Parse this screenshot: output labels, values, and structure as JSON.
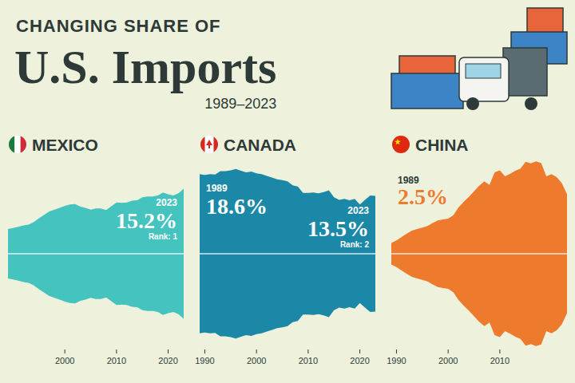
{
  "header": {
    "kicker": "CHANGING SHARE OF",
    "title": "U.S. Imports",
    "subtitle": "1989–2023"
  },
  "chart_data": [
    {
      "type": "streamgraph",
      "title": "MEXICO",
      "color": "#45c3bf",
      "x": [
        1989,
        1990,
        1991,
        1992,
        1993,
        1994,
        1995,
        1996,
        1997,
        1998,
        1999,
        2000,
        2001,
        2002,
        2003,
        2004,
        2005,
        2006,
        2007,
        2008,
        2009,
        2010,
        2011,
        2012,
        2013,
        2014,
        2015,
        2016,
        2017,
        2018,
        2019,
        2020,
        2021,
        2022,
        2023
      ],
      "values": [
        5.8,
        6.0,
        6.3,
        6.6,
        6.8,
        7.4,
        8.3,
        9.1,
        9.9,
        10.3,
        10.7,
        11.2,
        11.5,
        11.6,
        11.0,
        10.7,
        10.3,
        10.6,
        10.6,
        10.2,
        11.1,
        12.0,
        11.9,
        12.0,
        12.4,
        12.5,
        13.2,
        13.4,
        13.4,
        13.6,
        14.3,
        13.9,
        13.6,
        14.1,
        15.2
      ],
      "xlim": [
        1989,
        2023
      ],
      "ylim": [
        0,
        22
      ],
      "xticks": [
        2000,
        2010,
        2020
      ],
      "tick_labels": "x",
      "annotations": [
        {
          "year": 2023,
          "text": "15.2%",
          "rank": "Rank: 1"
        }
      ]
    },
    {
      "type": "streamgraph",
      "title": "CANADA",
      "color": "#1a88a6",
      "x": [
        1989,
        1990,
        1991,
        1992,
        1993,
        1994,
        1995,
        1996,
        1997,
        1998,
        1999,
        2000,
        2001,
        2002,
        2003,
        2004,
        2005,
        2006,
        2007,
        2008,
        2009,
        2010,
        2011,
        2012,
        2013,
        2014,
        2015,
        2016,
        2017,
        2018,
        2019,
        2020,
        2021,
        2022,
        2023
      ],
      "values": [
        18.6,
        18.4,
        18.6,
        18.5,
        19.3,
        19.3,
        19.5,
        19.8,
        19.4,
        19.0,
        19.2,
        18.8,
        18.6,
        18.2,
        17.8,
        17.4,
        17.2,
        16.9,
        16.0,
        15.7,
        14.2,
        14.2,
        14.3,
        14.1,
        14.4,
        14.8,
        13.2,
        12.6,
        12.8,
        12.5,
        12.8,
        11.5,
        12.6,
        13.6,
        13.5
      ],
      "xlim": [
        1989,
        2023
      ],
      "ylim": [
        0,
        22
      ],
      "xticks": [
        1990,
        2000,
        2010,
        2020
      ],
      "tick_labels": "x",
      "annotations": [
        {
          "year": 1989,
          "text": "18.6%"
        },
        {
          "year": 2023,
          "text": "13.5%",
          "rank": "Rank: 2"
        }
      ]
    },
    {
      "type": "streamgraph",
      "title": "CHINA",
      "color": "#ee7a2e",
      "x": [
        1989,
        1990,
        1991,
        1992,
        1993,
        1994,
        1995,
        1996,
        1997,
        1998,
        1999,
        2000,
        2001,
        2002,
        2003,
        2004,
        2005,
        2006,
        2007,
        2008,
        2009,
        2010,
        2011,
        2012,
        2013,
        2014,
        2015,
        2016,
        2017,
        2018,
        2019,
        2020,
        2021,
        2022,
        2023
      ],
      "values": [
        2.5,
        3.1,
        3.9,
        4.7,
        5.4,
        5.8,
        6.1,
        6.5,
        7.2,
        7.8,
        8.0,
        8.2,
        9.0,
        10.8,
        12.1,
        13.3,
        14.6,
        15.9,
        16.9,
        16.1,
        19.0,
        19.5,
        18.1,
        18.7,
        19.4,
        19.9,
        21.5,
        21.1,
        21.6,
        21.2,
        18.1,
        18.6,
        17.9,
        16.5,
        13.9
      ],
      "xlim": [
        1989,
        2023
      ],
      "ylim": [
        0,
        22
      ],
      "xticks": [
        1990,
        2000,
        2010
      ],
      "tick_labels": "x",
      "annotations": [
        {
          "year": 1989,
          "text": "2.5%"
        }
      ]
    }
  ]
}
